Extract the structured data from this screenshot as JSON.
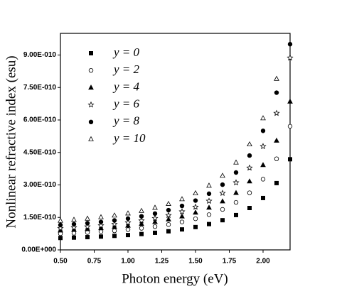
{
  "chart_data": {
    "type": "scatter",
    "x_label": "Photon energy (eV)",
    "y_label": "Nonlinear refractive index (esu)",
    "x": [
      0.5,
      0.6,
      0.7,
      0.8,
      0.9,
      1.0,
      1.1,
      1.2,
      1.3,
      1.4,
      1.5,
      1.6,
      1.7,
      1.8,
      1.9,
      2.0,
      2.1,
      2.2
    ],
    "series": [
      {
        "name": "y = 0",
        "color": "#000000",
        "marker": "square",
        "filled": true,
        "values": [
          5.5e-11,
          5.67e-11,
          5.89e-11,
          6.15e-11,
          6.47e-11,
          6.85e-11,
          7.32e-11,
          7.89e-11,
          8.59e-11,
          9.46e-11,
          1.054e-10,
          1.192e-10,
          1.371e-10,
          1.609e-10,
          1.934e-10,
          2.395e-10,
          3.085e-10,
          4.186e-10
        ]
      },
      {
        "name": "y = 2",
        "color": "#000000",
        "marker": "circle",
        "filled": false,
        "values": [
          7.5e-11,
          7.73e-11,
          8.03e-11,
          8.39e-11,
          8.82e-11,
          9.35e-11,
          9.98e-11,
          1.076e-10,
          1.172e-10,
          1.29e-10,
          1.438e-10,
          1.626e-10,
          1.87e-10,
          2.194e-10,
          2.637e-10,
          3.266e-10,
          4.207e-10,
          5.708e-10
        ]
      },
      {
        "name": "y = 4",
        "color": "#000000",
        "marker": "triangle",
        "filled": true,
        "values": [
          9e-11,
          9.28e-11,
          9.63e-11,
          1.006e-10,
          1.058e-10,
          1.121e-10,
          1.198e-10,
          1.292e-10,
          1.406e-10,
          1.548e-10,
          1.725e-10,
          1.951e-10,
          2.244e-10,
          2.633e-10,
          3.164e-10,
          3.92e-10,
          5.048e-10,
          6.849e-10
        ]
      },
      {
        "name": "y = 6",
        "color": "#000000",
        "marker": "star",
        "filled": false,
        "values": [
          1e-10,
          1.033e-10,
          1.073e-10,
          1.123e-10,
          1.184e-10,
          1.258e-10,
          1.349e-10,
          1.459e-10,
          1.596e-10,
          1.766e-10,
          1.981e-10,
          2.257e-10,
          2.619e-10,
          3.108e-10,
          3.789e-10,
          4.782e-10,
          6.314e-10,
          8.871e-10
        ]
      },
      {
        "name": "y = 8",
        "color": "#000000",
        "marker": "circle",
        "filled": true,
        "values": [
          1.15e-10,
          1.188e-10,
          1.234e-10,
          1.292e-10,
          1.362e-10,
          1.447e-10,
          1.551e-10,
          1.678e-10,
          1.835e-10,
          2.031e-10,
          2.278e-10,
          2.595e-10,
          3.012e-10,
          3.574e-10,
          4.357e-10,
          5.499e-10,
          7.261e-10,
          9.5e-10
        ]
      },
      {
        "name": "y = 10",
        "color": "#000000",
        "marker": "triangle",
        "filled": false,
        "values": [
          1.35e-10,
          1.393e-10,
          1.446e-10,
          1.512e-10,
          1.592e-10,
          1.688e-10,
          1.806e-10,
          1.95e-10,
          2.126e-10,
          2.344e-10,
          2.619e-10,
          2.97e-10,
          3.427e-10,
          4.037e-10,
          4.878e-10,
          6.084e-10,
          7.905e-10,
          null
        ]
      }
    ],
    "xlim": [
      0.5,
      2.2
    ],
    "xticks": [
      {
        "value": 0.5,
        "label": "0.50"
      },
      {
        "value": 0.75,
        "label": "0.75"
      },
      {
        "value": 1.0,
        "label": "1.00"
      },
      {
        "value": 1.25,
        "label": "1.25"
      },
      {
        "value": 1.5,
        "label": "1.50"
      },
      {
        "value": 1.75,
        "label": "1.75"
      },
      {
        "value": 2.0,
        "label": "2.00"
      }
    ],
    "ylim": [
      0,
      1e-09
    ],
    "yticks": [
      {
        "value": 0,
        "label": "0.00E+000"
      },
      {
        "value": 1.5e-10,
        "label": "1.50E-010"
      },
      {
        "value": 3e-10,
        "label": "3.00E-010"
      },
      {
        "value": 4.5e-10,
        "label": "4.50E-010"
      },
      {
        "value": 6e-10,
        "label": "6.00E-010"
      },
      {
        "value": 7.5e-10,
        "label": "7.50E-010"
      },
      {
        "value": 9e-10,
        "label": "9.00E-010"
      }
    ],
    "legend": "upper left"
  }
}
